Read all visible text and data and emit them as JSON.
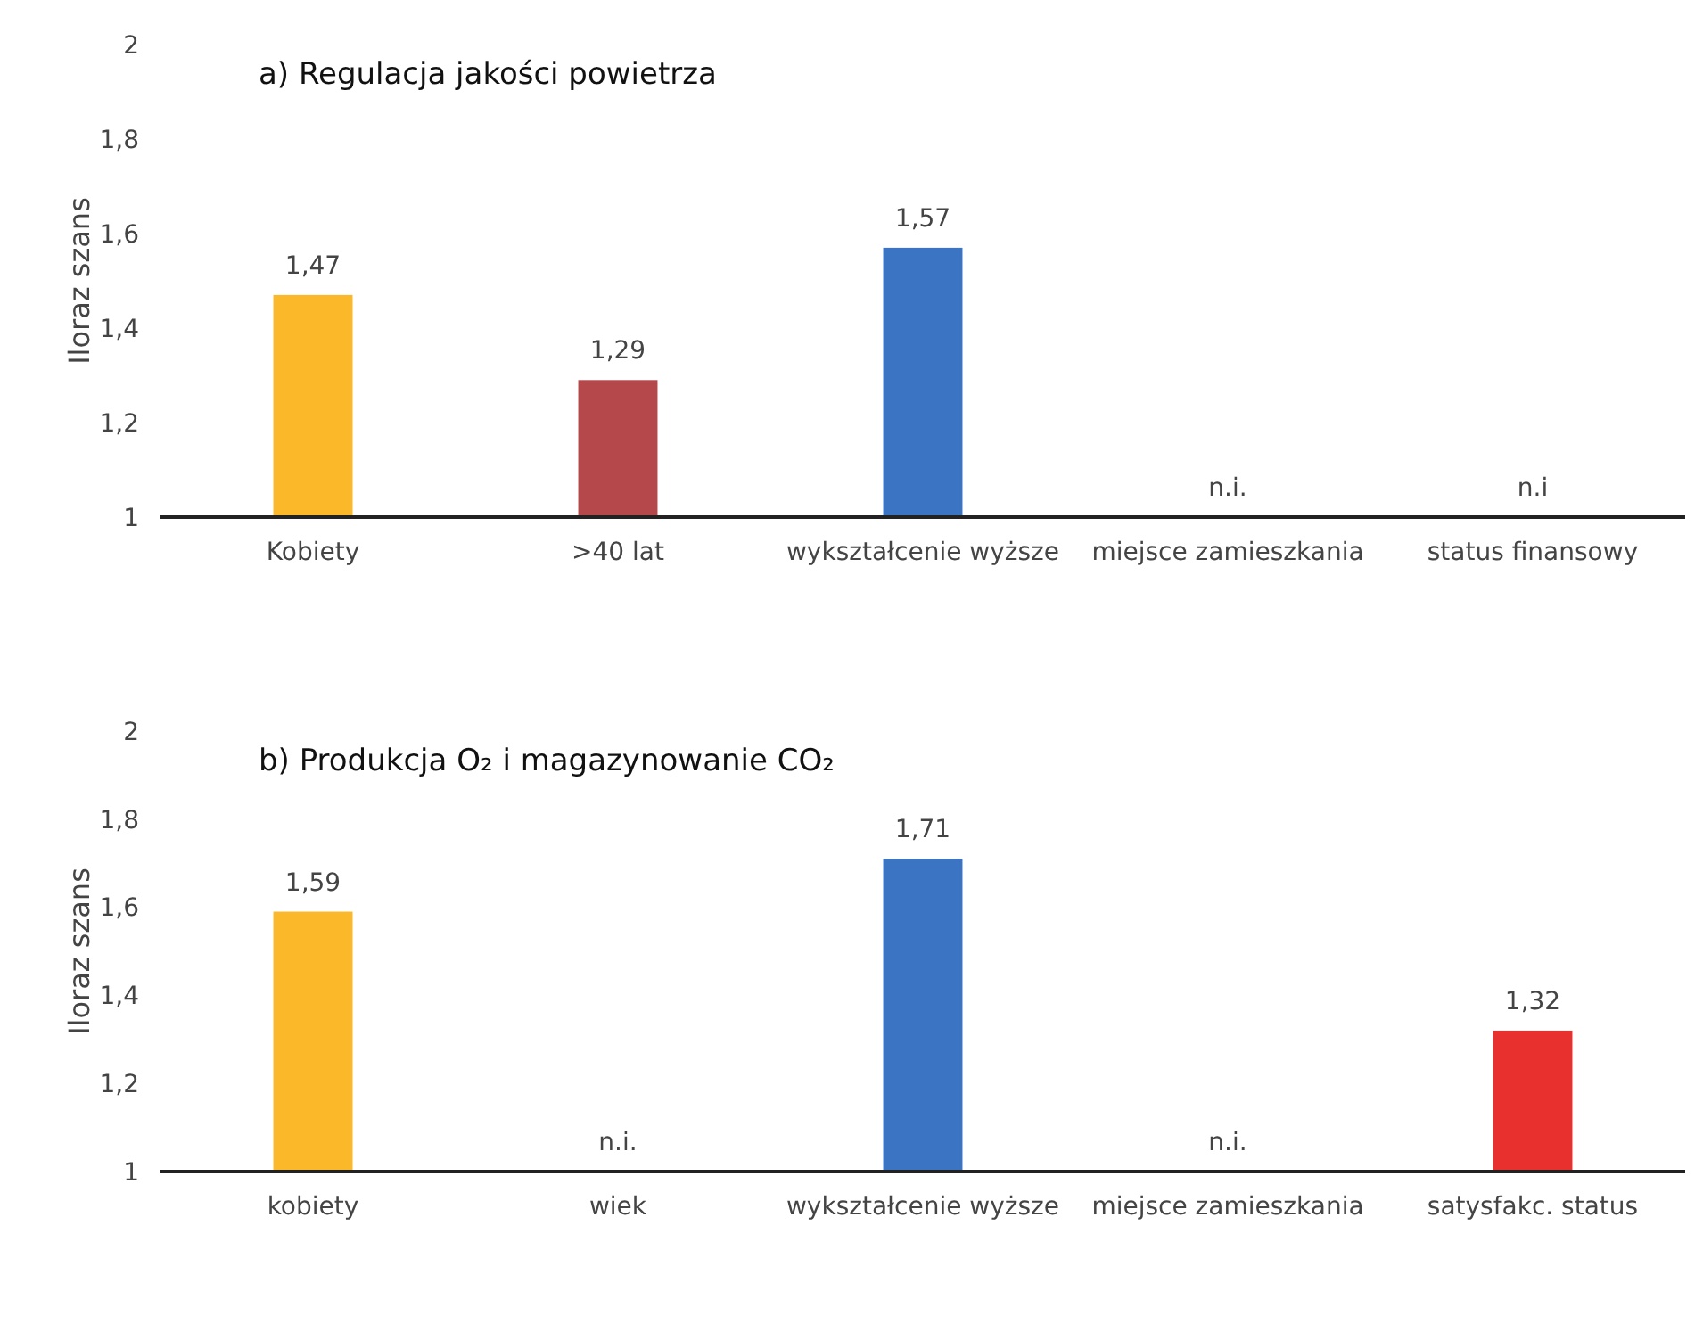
{
  "chart_data": [
    {
      "type": "bar",
      "title": "a) Regulacja jakości powietrza",
      "ylabel": "Iloraz szans",
      "categories": [
        "Kobiety",
        ">40 lat",
        "wykształcenie wyższe",
        "miejsce zamieszkania",
        "status finansowy"
      ],
      "values": [
        1.47,
        1.29,
        1.57,
        null,
        null
      ],
      "colors": [
        "#fbb829",
        "#b5484a",
        "#3b74c2",
        null,
        null
      ],
      "value_labels": [
        "1,47",
        "1,29",
        "1,57",
        "n.i.",
        "n.i"
      ],
      "ylim": [
        1,
        2
      ],
      "yticks": [
        {
          "value": 1,
          "label": "1"
        },
        {
          "value": 1.2,
          "label": "1,2"
        },
        {
          "value": 1.4,
          "label": "1,4"
        },
        {
          "value": 1.6,
          "label": "1,6"
        },
        {
          "value": 1.8,
          "label": "1,8"
        },
        {
          "value": 2,
          "label": "2"
        }
      ],
      "grid": false
    },
    {
      "type": "bar",
      "title": "b) Produkcja O₂ i magazynowanie CO₂",
      "ylabel": "Iloraz szans",
      "categories": [
        "kobiety",
        "wiek",
        "wykształcenie wyższe",
        "miejsce zamieszkania",
        "satysfakc. status"
      ],
      "values": [
        1.59,
        null,
        1.71,
        null,
        1.32
      ],
      "colors": [
        "#fbb829",
        null,
        "#3b74c2",
        null,
        "#e8302e"
      ],
      "value_labels": [
        "1,59",
        "n.i.",
        "1,71",
        "n.i.",
        "1,32"
      ],
      "ylim": [
        1,
        2
      ],
      "yticks": [
        {
          "value": 1,
          "label": "1"
        },
        {
          "value": 1.2,
          "label": "1,2"
        },
        {
          "value": 1.4,
          "label": "1,4"
        },
        {
          "value": 1.6,
          "label": "1,6"
        },
        {
          "value": 1.8,
          "label": "1,8"
        },
        {
          "value": 2,
          "label": "2"
        }
      ],
      "grid": false
    }
  ]
}
